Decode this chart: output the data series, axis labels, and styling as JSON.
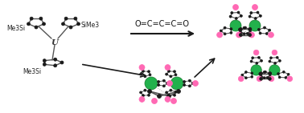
{
  "background_color": "#ffffff",
  "title": "",
  "arrow_color": "#000000",
  "reagent_text": "O=C=C=C=O",
  "reagent_fontsize": 9,
  "label_me3si_1": "Me3Si",
  "label_me3si_2": "SiMe3",
  "label_me3si_3": "Me3Si",
  "label_u": "U",
  "atom_black": "#1a1a1a",
  "atom_green": "#22b14c",
  "atom_pink": "#ff69b4",
  "atom_gray": "#888888",
  "bond_color": "#555555",
  "dashed_color": "#aaaaaa",
  "fig_width": 3.78,
  "fig_height": 1.41,
  "dpi": 100
}
